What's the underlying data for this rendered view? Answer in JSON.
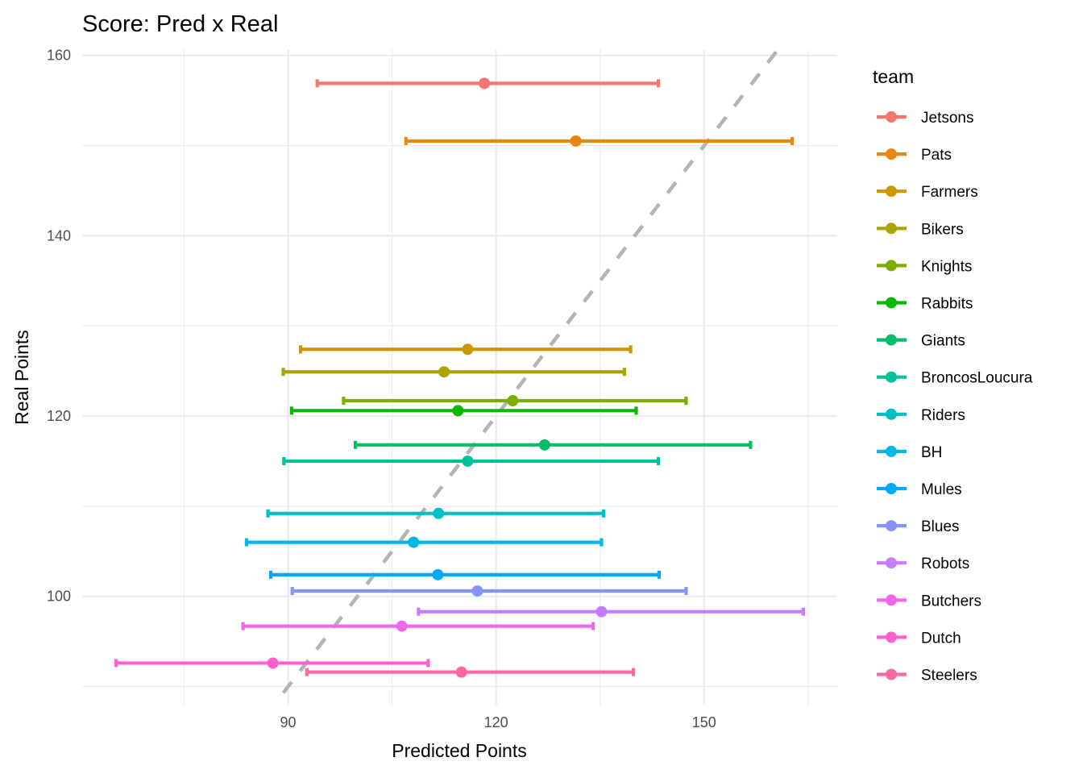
{
  "chart_data": {
    "type": "errorbar-scatter",
    "title": "Score: Pred x Real",
    "xlabel": "Predicted Points",
    "ylabel": "Real Points",
    "xlim": [
      60.3,
      169.2
    ],
    "ylim": [
      87.9,
      160.6
    ],
    "x_major_ticks": [
      90,
      120,
      150
    ],
    "x_minor_ticks": [
      75,
      105,
      135,
      165
    ],
    "y_major_ticks": [
      100,
      120,
      140,
      160
    ],
    "y_minor_ticks": [
      90,
      110,
      130,
      150
    ],
    "grid": true,
    "reference_line": {
      "type": "identity",
      "label": "y = x",
      "style": "dashed",
      "color": "#b3b3b3"
    },
    "legend": {
      "title": "team",
      "position": "right"
    },
    "series": [
      {
        "name": "Jetsons",
        "color": "#F8766D",
        "pred": 118.3,
        "pred_low": 94.2,
        "pred_high": 143.4,
        "real": 156.9
      },
      {
        "name": "Pats",
        "color": "#E68613",
        "pred": 131.5,
        "pred_low": 107.0,
        "pred_high": 162.7,
        "real": 150.5
      },
      {
        "name": "Farmers",
        "color": "#CD9600",
        "pred": 115.9,
        "pred_low": 91.8,
        "pred_high": 139.4,
        "real": 127.4
      },
      {
        "name": "Bikers",
        "color": "#ABA300",
        "pred": 112.5,
        "pred_low": 89.3,
        "pred_high": 138.5,
        "real": 124.9
      },
      {
        "name": "Knights",
        "color": "#7CAE00",
        "pred": 122.4,
        "pred_low": 98.0,
        "pred_high": 147.4,
        "real": 121.7
      },
      {
        "name": "Rabbits",
        "color": "#0CB702",
        "pred": 114.5,
        "pred_low": 90.5,
        "pred_high": 140.2,
        "real": 120.6
      },
      {
        "name": "Giants",
        "color": "#00BE67",
        "pred": 127.0,
        "pred_low": 99.7,
        "pred_high": 156.7,
        "real": 116.8
      },
      {
        "name": "BroncosLoucura",
        "color": "#00C19A",
        "pred": 115.9,
        "pred_low": 89.4,
        "pred_high": 143.4,
        "real": 115.0
      },
      {
        "name": "Riders",
        "color": "#00BFC4",
        "pred": 111.7,
        "pred_low": 87.1,
        "pred_high": 135.5,
        "real": 109.2
      },
      {
        "name": "BH",
        "color": "#00B8E7",
        "pred": 108.1,
        "pred_low": 84.0,
        "pred_high": 135.2,
        "real": 106.0
      },
      {
        "name": "Mules",
        "color": "#00A9FF",
        "pred": 111.6,
        "pred_low": 87.5,
        "pred_high": 143.5,
        "real": 102.4
      },
      {
        "name": "Blues",
        "color": "#8494FF",
        "pred": 117.3,
        "pred_low": 90.6,
        "pred_high": 147.4,
        "real": 100.6
      },
      {
        "name": "Robots",
        "color": "#C77CFF",
        "pred": 135.2,
        "pred_low": 108.8,
        "pred_high": 164.3,
        "real": 98.3
      },
      {
        "name": "Butchers",
        "color": "#ED68ED",
        "pred": 106.4,
        "pred_low": 83.5,
        "pred_high": 134.0,
        "real": 96.7
      },
      {
        "name": "Dutch",
        "color": "#FF61CC",
        "pred": 87.8,
        "pred_low": 65.2,
        "pred_high": 110.2,
        "real": 92.6
      },
      {
        "name": "Steelers",
        "color": "#FF68A1",
        "pred": 115.0,
        "pred_low": 92.7,
        "pred_high": 139.8,
        "real": 91.6
      }
    ]
  }
}
